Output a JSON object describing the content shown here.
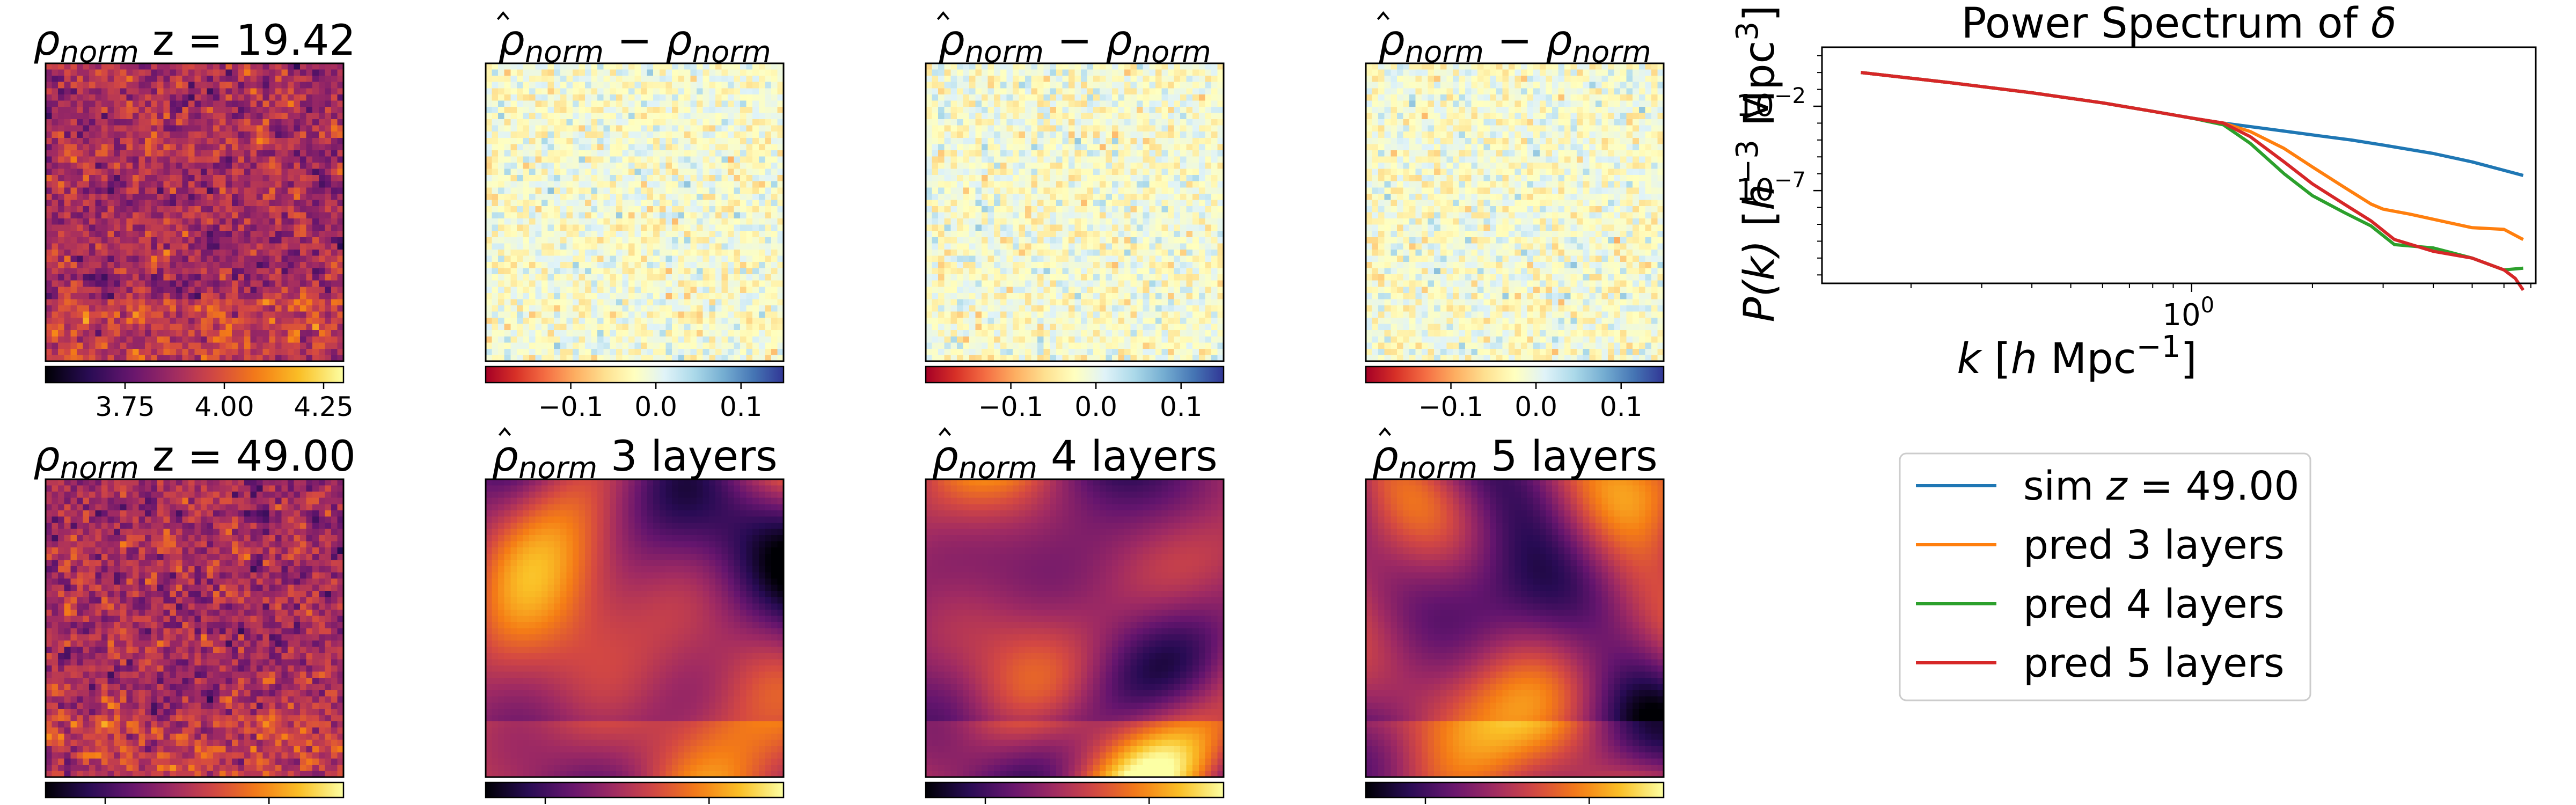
{
  "figure": {
    "panels": [
      {
        "id": "top-1",
        "title_main": "ρ",
        "title_sub": "norm",
        "title_rest": " z = 19.42",
        "hat": false,
        "kind": "density",
        "colorbar": {
          "ticks": [
            3.75,
            4.0,
            4.25
          ],
          "tick_labels": [
            "3.75",
            "4.00",
            "4.25"
          ],
          "range": [
            3.55,
            4.3
          ],
          "colormap": "inferno"
        }
      },
      {
        "id": "top-2",
        "title_main": "ρ",
        "title_sub": "norm",
        "title_rest": " − ",
        "title_main2": "ρ",
        "title_sub2": "norm",
        "hat": true,
        "kind": "residual",
        "colorbar": {
          "ticks": [
            -0.1,
            0.0,
            0.1
          ],
          "tick_labels": [
            "−0.1",
            "0.0",
            "0.1"
          ],
          "range": [
            -0.2,
            0.15
          ],
          "colormap": "RdYlBu"
        }
      },
      {
        "id": "top-3",
        "title_main": "ρ",
        "title_sub": "norm",
        "title_rest": " − ",
        "title_main2": "ρ",
        "title_sub2": "norm",
        "hat": true,
        "kind": "residual",
        "colorbar": {
          "ticks": [
            -0.1,
            0.0,
            0.1
          ],
          "tick_labels": [
            "−0.1",
            "0.0",
            "0.1"
          ],
          "range": [
            -0.2,
            0.15
          ],
          "colormap": "RdYlBu"
        }
      },
      {
        "id": "top-4",
        "title_main": "ρ",
        "title_sub": "norm",
        "title_rest": " − ",
        "title_main2": "ρ",
        "title_sub2": "norm",
        "hat": true,
        "kind": "residual",
        "colorbar": {
          "ticks": [
            -0.1,
            0.0,
            0.1
          ],
          "tick_labels": [
            "−0.1",
            "0.0",
            "0.1"
          ],
          "range": [
            -0.2,
            0.15
          ],
          "colormap": "RdYlBu"
        }
      },
      {
        "id": "bottom-1",
        "title_main": "ρ",
        "title_sub": "norm",
        "title_rest": " z = 49.00",
        "hat": false,
        "kind": "density",
        "colorbar": {
          "colormap": "inferno"
        }
      },
      {
        "id": "bottom-2",
        "title_main": "ρ",
        "title_sub": "norm",
        "title_rest": " 3 layers",
        "hat": true,
        "kind": "smooth",
        "colorbar": {
          "colormap": "inferno"
        }
      },
      {
        "id": "bottom-3",
        "title_main": "ρ",
        "title_sub": "norm",
        "title_rest": " 4 layers",
        "hat": true,
        "kind": "smooth",
        "colorbar": {
          "colormap": "inferno"
        }
      },
      {
        "id": "bottom-4",
        "title_main": "ρ",
        "title_sub": "norm",
        "title_rest": " 5 layers",
        "hat": true,
        "kind": "smooth",
        "colorbar": {
          "colormap": "inferno"
        }
      }
    ]
  },
  "chart_data": {
    "type": "line",
    "title_prefix": "Power Spectrum of ",
    "title_symbol": "δ",
    "xlabel_main": "k",
    "xlabel_unit": "h",
    "xlabel_rest": " Mpc",
    "xlabel_exp": "−1",
    "ylabel_main": "P(k)",
    "ylabel_unit": "h",
    "ylabel_exp1": "−3",
    "ylabel_rest": " Mpc",
    "ylabel_exp2": "3",
    "xscale": "log",
    "yscale": "log",
    "xlim": [
      0.12,
      7.2
    ],
    "ylim_log10": [
      -12.5,
      1.5
    ],
    "xticks": [
      1
    ],
    "xtick_labels": [
      "10",
      "0"
    ],
    "yticks_log10": [
      -2,
      -7
    ],
    "ytick_labels": [
      [
        "10",
        "−2"
      ],
      [
        "10",
        "−7"
      ]
    ],
    "legend_position": "below-right",
    "series": [
      {
        "color": "#1f77b4",
        "legend_main": "sim ",
        "legend_italic": "z",
        "legend_rest": " = 49.00",
        "x": [
          0.15,
          0.25,
          0.4,
          0.6,
          0.8,
          1.0,
          1.2,
          1.5,
          2.0,
          2.5,
          3.0,
          4.0,
          5.0,
          6.0,
          6.7
        ],
        "log10_y": [
          0.0,
          -0.6,
          -1.2,
          -1.8,
          -2.3,
          -2.7,
          -3.0,
          -3.3,
          -3.7,
          -4.0,
          -4.3,
          -4.8,
          -5.3,
          -5.8,
          -6.1
        ]
      },
      {
        "color": "#ff7f0e",
        "legend_main": "pred 3 layers",
        "legend_italic": "",
        "legend_rest": "",
        "x": [
          0.15,
          0.25,
          0.4,
          0.6,
          0.8,
          1.0,
          1.2,
          1.4,
          1.7,
          2.0,
          2.4,
          2.8,
          3.0,
          3.5,
          4.0,
          5.0,
          6.0,
          6.7
        ],
        "log10_y": [
          0.0,
          -0.6,
          -1.2,
          -1.8,
          -2.3,
          -2.7,
          -3.0,
          -3.5,
          -4.5,
          -5.6,
          -6.8,
          -7.8,
          -8.1,
          -8.4,
          -8.7,
          -9.2,
          -9.3,
          -9.9
        ]
      },
      {
        "color": "#2ca02c",
        "legend_main": "pred 4 layers",
        "legend_italic": "",
        "legend_rest": "",
        "x": [
          0.15,
          0.25,
          0.4,
          0.6,
          0.8,
          1.0,
          1.2,
          1.4,
          1.7,
          2.0,
          2.4,
          2.8,
          3.2,
          4.0,
          5.0,
          6.0,
          6.7
        ],
        "log10_y": [
          0.0,
          -0.6,
          -1.2,
          -1.8,
          -2.3,
          -2.7,
          -3.1,
          -4.2,
          -6.0,
          -7.3,
          -8.3,
          -9.1,
          -10.2,
          -10.4,
          -11.0,
          -11.7,
          -11.6
        ]
      },
      {
        "color": "#d62728",
        "legend_main": "pred 5 layers",
        "legend_italic": "",
        "legend_rest": "",
        "x": [
          0.15,
          0.25,
          0.4,
          0.6,
          0.8,
          1.0,
          1.2,
          1.4,
          1.7,
          2.0,
          2.4,
          2.8,
          3.2,
          4.0,
          5.0,
          6.0,
          6.4,
          6.7
        ],
        "log10_y": [
          0.0,
          -0.6,
          -1.2,
          -1.8,
          -2.3,
          -2.7,
          -3.0,
          -3.8,
          -5.3,
          -6.6,
          -7.8,
          -8.8,
          -9.9,
          -10.6,
          -11.0,
          -11.7,
          -12.2,
          -12.9
        ]
      }
    ]
  }
}
